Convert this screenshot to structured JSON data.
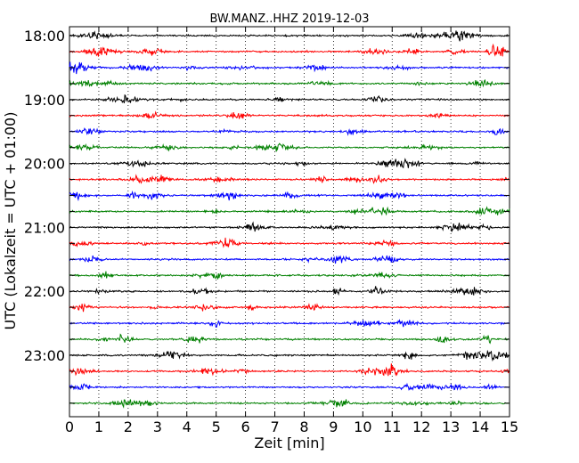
{
  "chart_data": {
    "type": "line",
    "title": "BW.MANZ..HHZ 2019-12-03",
    "xlabel": "Zeit  [min]",
    "ylabel": "UTC (Lokalzeit = UTC + 01:00)",
    "xlim": [
      0,
      15
    ],
    "x_ticks": [
      0,
      1,
      2,
      3,
      4,
      5,
      6,
      7,
      8,
      9,
      10,
      11,
      12,
      13,
      14,
      15
    ],
    "x_tick_labels": [
      "0",
      "1",
      "2",
      "3",
      "4",
      "5",
      "6",
      "7",
      "8",
      "9",
      "10",
      "11",
      "12",
      "13",
      "14",
      "15"
    ],
    "grid": "vertical-dotted",
    "series_colors": [
      "#000000",
      "#ff0000",
      "#0000ff",
      "#008000"
    ],
    "rows": [
      {
        "start": "18:00",
        "label": "18:00"
      },
      {
        "start": "18:15",
        "label": ""
      },
      {
        "start": "18:30",
        "label": ""
      },
      {
        "start": "18:45",
        "label": ""
      },
      {
        "start": "19:00",
        "label": "19:00"
      },
      {
        "start": "19:15",
        "label": ""
      },
      {
        "start": "19:30",
        "label": ""
      },
      {
        "start": "19:45",
        "label": ""
      },
      {
        "start": "20:00",
        "label": "20:00"
      },
      {
        "start": "20:15",
        "label": ""
      },
      {
        "start": "20:30",
        "label": ""
      },
      {
        "start": "20:45",
        "label": ""
      },
      {
        "start": "21:00",
        "label": "21:00"
      },
      {
        "start": "21:15",
        "label": ""
      },
      {
        "start": "21:30",
        "label": ""
      },
      {
        "start": "21:45",
        "label": ""
      },
      {
        "start": "22:00",
        "label": "22:00"
      },
      {
        "start": "22:15",
        "label": ""
      },
      {
        "start": "22:30",
        "label": ""
      },
      {
        "start": "22:45",
        "label": ""
      },
      {
        "start": "23:00",
        "label": "23:00"
      },
      {
        "start": "23:15",
        "label": ""
      },
      {
        "start": "23:30",
        "label": ""
      },
      {
        "start": "23:45",
        "label": ""
      }
    ]
  }
}
